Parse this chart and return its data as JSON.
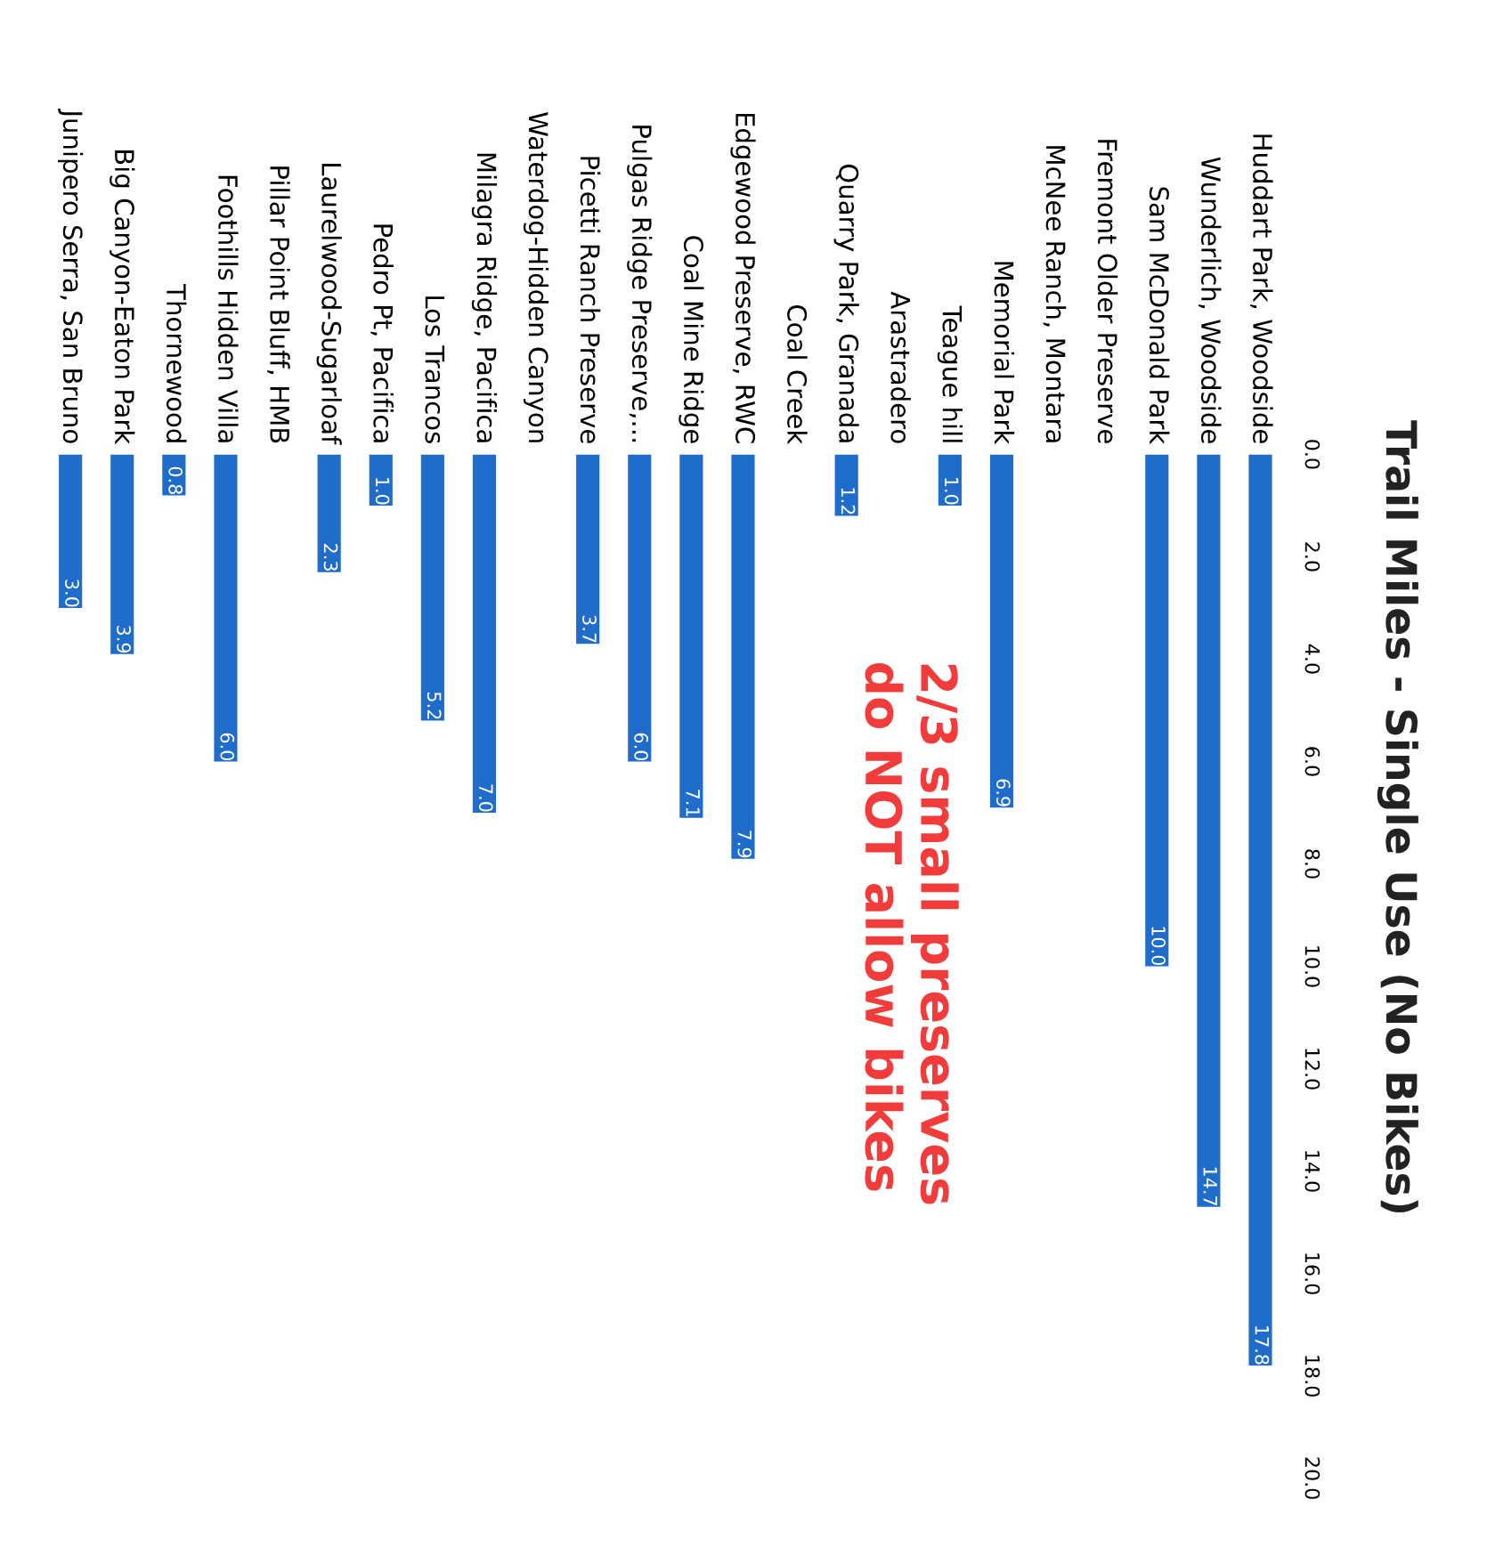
{
  "chart_data": {
    "type": "bar",
    "title": "Trail Miles - Single Use (No Bikes)",
    "categories": [
      "Junipero Serra, San Bruno",
      "Big Canyon-Eaton Park",
      "Thornewood",
      "Foothills Hidden Villa",
      "Pillar Point Bluff, HMB",
      "Laurelwood-Sugarloaf",
      "Pedro Pt, Pacifica",
      "Los Trancos",
      "Milagra Ridge, Pacifica",
      "Waterdog-Hidden Canyon",
      "Picetti Ranch Preserve",
      "Pulgas Ridge Preserve,...",
      "Coal Mine Ridge",
      "Edgewood Preserve, RWC",
      "Coal Creek",
      "Quarry Park, Granada",
      "Arastradero",
      "Teague hill",
      "Memorial Park",
      "McNee Ranch, Montara",
      "Fremont Older Preserve",
      "Sam McDonald Park",
      "Wunderlich, Woodside",
      "Huddart Park, Woodside"
    ],
    "values": [
      3.0,
      3.9,
      0.8,
      6.0,
      null,
      2.3,
      1.0,
      5.2,
      7.0,
      null,
      3.7,
      6.0,
      7.1,
      7.9,
      null,
      1.2,
      null,
      1.0,
      6.9,
      null,
      null,
      10.0,
      14.7,
      17.8
    ],
    "value_labels": [
      "3.0",
      "3.9",
      "0.8",
      "6.0",
      null,
      "2.3",
      "1.0",
      "5.2",
      "7.0",
      null,
      "3.7",
      "6.0",
      "7.1",
      "7.9",
      null,
      "1.2",
      null,
      "1.0",
      "6.9",
      null,
      null,
      "10.0",
      "14.7",
      "17.8"
    ],
    "color": "#1f6ccb",
    "ylim": [
      20,
      0
    ],
    "yticks": [
      {
        "value": 0,
        "label": "0.0"
      },
      {
        "value": 2,
        "label": "2.0"
      },
      {
        "value": 4,
        "label": "4.0"
      },
      {
        "value": 6,
        "label": "6.0"
      },
      {
        "value": 8,
        "label": "8.0"
      },
      {
        "value": 10,
        "label": "10.0"
      },
      {
        "value": 12,
        "label": "12.0"
      },
      {
        "value": 14,
        "label": "14.0"
      },
      {
        "value": 16,
        "label": "16.0"
      },
      {
        "value": 18,
        "label": "18.0"
      },
      {
        "value": 20,
        "label": "20.0"
      }
    ],
    "annotations": [
      "2/3 small preserves\ndo NOT allow bikes"
    ],
    "grid": false,
    "legend": false
  }
}
